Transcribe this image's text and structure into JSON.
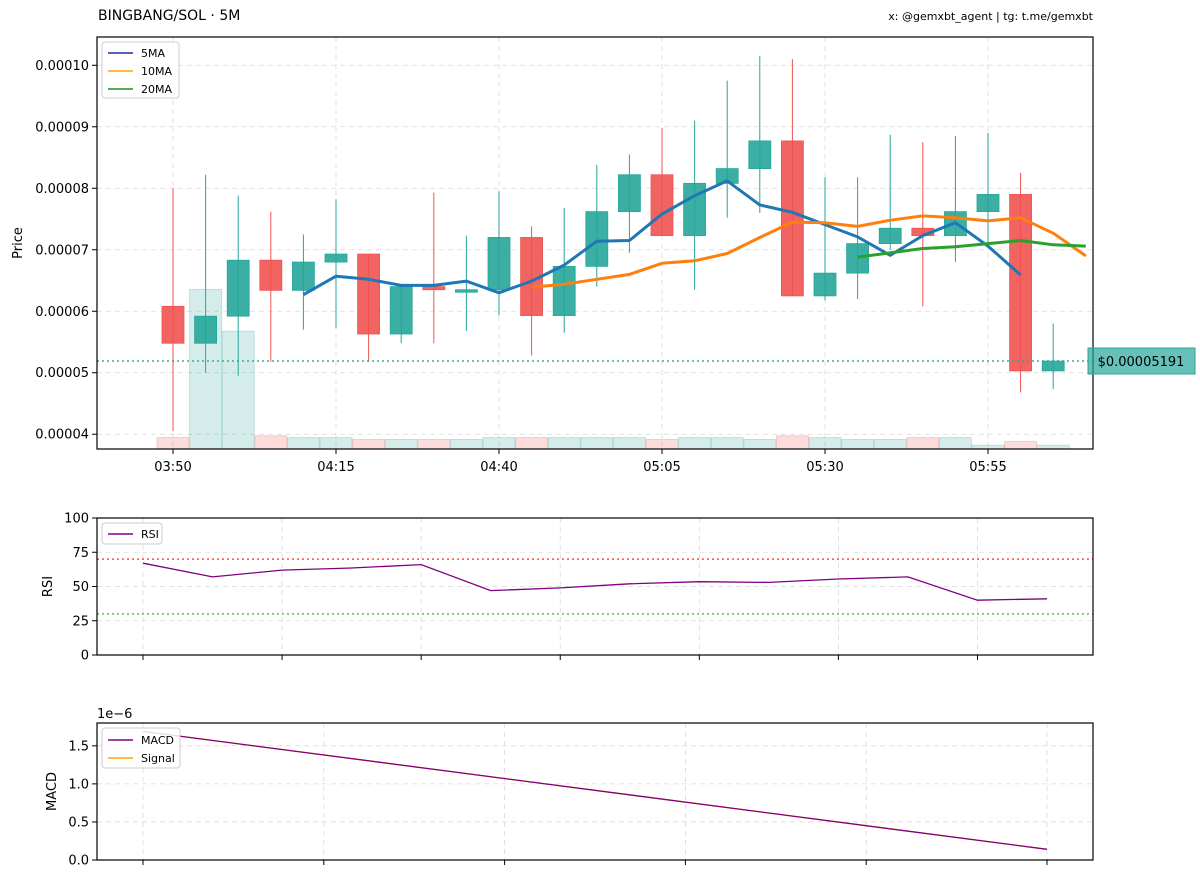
{
  "header": {
    "title": "BINGBANG/SOL · 5M",
    "credit": "x: @gemxbt_agent | tg: t.me/gemxbt"
  },
  "colors": {
    "up": "#26a69a",
    "down": "#ef5350",
    "ma5": "#1f77b4",
    "ma10": "#ff7f0e",
    "ma20": "#2ca02c",
    "legend_ma5": "#1f2f9f",
    "legend_ma10": "#ffa500",
    "legend_ma20": "#228b22",
    "rsi": "#800080",
    "macd": "#800080",
    "signal": "#ffa500",
    "overbought": "#ff0000",
    "oversold": "#00b000",
    "price_tag": "#26a69a"
  },
  "chart_data": [
    {
      "type": "candlestick",
      "ylabel": "Price",
      "ylim": [
        3.76e-05,
        0.0001046
      ],
      "yticks": [
        "0.00004",
        "0.00005",
        "0.00006",
        "0.00007",
        "0.00008",
        "0.00009",
        "0.00010"
      ],
      "xticks": [
        "03:50",
        "04:15",
        "04:40",
        "05:05",
        "05:30",
        "05:55"
      ],
      "grid": true,
      "legend": "top-left",
      "last_price_label": "$0.00005191",
      "last_price": 5.191e-05,
      "candles": [
        {
          "o": 6.08e-05,
          "h": 8e-05,
          "l": 4.05e-05,
          "c": 5.48e-05,
          "v": 0.3
        },
        {
          "o": 5.48e-05,
          "h": 8.22e-05,
          "l": 5e-05,
          "c": 5.92e-05,
          "v": 4.2
        },
        {
          "o": 5.92e-05,
          "h": 7.88e-05,
          "l": 4.95e-05,
          "c": 6.83e-05,
          "v": 3.1
        },
        {
          "o": 6.83e-05,
          "h": 7.62e-05,
          "l": 5.18e-05,
          "c": 6.34e-05,
          "v": 0.35
        },
        {
          "o": 6.34e-05,
          "h": 7.25e-05,
          "l": 5.7e-05,
          "c": 6.8e-05,
          "v": 0.3
        },
        {
          "o": 6.8e-05,
          "h": 7.82e-05,
          "l": 5.73e-05,
          "c": 6.93e-05,
          "v": 0.3
        },
        {
          "o": 6.93e-05,
          "h": 6.93e-05,
          "l": 5.18e-05,
          "c": 5.63e-05,
          "v": 0.25
        },
        {
          "o": 5.63e-05,
          "h": 6.4e-05,
          "l": 5.48e-05,
          "c": 6.4e-05,
          "v": 0.25
        },
        {
          "o": 6.4e-05,
          "h": 7.93e-05,
          "l": 5.48e-05,
          "c": 6.35e-05,
          "v": 0.25
        },
        {
          "o": 6.35e-05,
          "h": 7.23e-05,
          "l": 5.68e-05,
          "c": 6.35e-05,
          "v": 0.25
        },
        {
          "o": 6.35e-05,
          "h": 7.95e-05,
          "l": 5.93e-05,
          "c": 7.2e-05,
          "v": 0.3
        },
        {
          "o": 7.2e-05,
          "h": 7.38e-05,
          "l": 5.28e-05,
          "c": 5.93e-05,
          "v": 0.3
        },
        {
          "o": 5.93e-05,
          "h": 7.68e-05,
          "l": 5.65e-05,
          "c": 6.73e-05,
          "v": 0.3
        },
        {
          "o": 6.73e-05,
          "h": 8.38e-05,
          "l": 6.4e-05,
          "c": 7.62e-05,
          "v": 0.3
        },
        {
          "o": 7.62e-05,
          "h": 8.55e-05,
          "l": 6.95e-05,
          "c": 8.22e-05,
          "v": 0.3
        },
        {
          "o": 8.22e-05,
          "h": 8.98e-05,
          "l": 7.23e-05,
          "c": 7.23e-05,
          "v": 0.25
        },
        {
          "o": 7.23e-05,
          "h": 9.1e-05,
          "l": 6.35e-05,
          "c": 8.08e-05,
          "v": 0.3
        },
        {
          "o": 8.08e-05,
          "h": 9.75e-05,
          "l": 7.52e-05,
          "c": 8.32e-05,
          "v": 0.3
        },
        {
          "o": 8.32e-05,
          "h": 0.0001015,
          "l": 7.6e-05,
          "c": 8.77e-05,
          "v": 0.25
        },
        {
          "o": 8.77e-05,
          "h": 0.000101,
          "l": 6.25e-05,
          "c": 6.25e-05,
          "v": 0.35
        },
        {
          "o": 6.25e-05,
          "h": 8.18e-05,
          "l": 6.18e-05,
          "c": 6.62e-05,
          "v": 0.3
        },
        {
          "o": 6.62e-05,
          "h": 8.18e-05,
          "l": 6.2e-05,
          "c": 7.1e-05,
          "v": 0.25
        },
        {
          "o": 7.1e-05,
          "h": 8.87e-05,
          "l": 7e-05,
          "c": 7.35e-05,
          "v": 0.25
        },
        {
          "o": 7.35e-05,
          "h": 8.75e-05,
          "l": 6.08e-05,
          "c": 7.23e-05,
          "v": 0.3
        },
        {
          "o": 7.23e-05,
          "h": 8.85e-05,
          "l": 6.8e-05,
          "c": 7.62e-05,
          "v": 0.3
        },
        {
          "o": 7.62e-05,
          "h": 8.9e-05,
          "l": 7.1e-05,
          "c": 7.9e-05,
          "v": 0.1
        },
        {
          "o": 7.9e-05,
          "h": 8.25e-05,
          "l": 4.68e-05,
          "c": 5.03e-05,
          "v": 0.2
        },
        {
          "o": 5.03e-05,
          "h": 5.8e-05,
          "l": 4.73e-05,
          "c": 5.19e-05,
          "v": 0.1
        }
      ],
      "series": [
        {
          "name": "5MA",
          "start": 4,
          "values": [
            6.27e-05,
            6.57e-05,
            6.52e-05,
            6.42e-05,
            6.42e-05,
            6.49e-05,
            6.3e-05,
            6.49e-05,
            6.75e-05,
            7.14e-05,
            7.15e-05,
            7.58e-05,
            7.88e-05,
            8.12e-05,
            7.73e-05,
            7.61e-05,
            7.41e-05,
            7.21e-05,
            6.91e-05,
            7.23e-05,
            7.44e-05,
            7.06e-05,
            6.59e-05
          ]
        },
        {
          "name": "10MA",
          "start": 11,
          "values": [
            6.39e-05,
            6.44e-05,
            6.52e-05,
            6.6e-05,
            6.78e-05,
            6.82e-05,
            6.94e-05,
            7.2e-05,
            7.45e-05,
            7.44e-05,
            7.38e-05,
            7.48e-05,
            7.55e-05,
            7.52e-05,
            7.47e-05,
            7.52e-05,
            7.27e-05,
            6.9e-05
          ]
        },
        {
          "name": "20MA",
          "start": 21,
          "values": [
            6.88e-05,
            6.95e-05,
            7.02e-05,
            7.05e-05,
            7.1e-05,
            7.15e-05,
            7.08e-05,
            7.06e-05
          ]
        }
      ]
    },
    {
      "type": "line",
      "ylabel": "RSI",
      "ylim": [
        0,
        100
      ],
      "yticks": [
        "0",
        "25",
        "50",
        "75",
        "100"
      ],
      "grid": true,
      "legend": "top-left",
      "overbought": 70,
      "oversold": 30,
      "series": [
        {
          "name": "RSI",
          "values": [
            67.0,
            57.0,
            62.0,
            63.5,
            66.0,
            47.0,
            49.0,
            52.0,
            53.5,
            53.0,
            55.5,
            57.0,
            40.0,
            41.0
          ]
        }
      ]
    },
    {
      "type": "line",
      "ylabel": "MACD",
      "ylim": [
        0,
        1.8
      ],
      "yticks": [
        "0.0",
        "0.5",
        "1.0",
        "1.5"
      ],
      "offset_label": "1e−6",
      "grid": true,
      "legend": "top-left",
      "series": [
        {
          "name": "MACD",
          "values": [
            1.69,
            0.14
          ]
        },
        {
          "name": "Signal",
          "values": [
            1.69,
            0.14
          ]
        }
      ]
    }
  ]
}
